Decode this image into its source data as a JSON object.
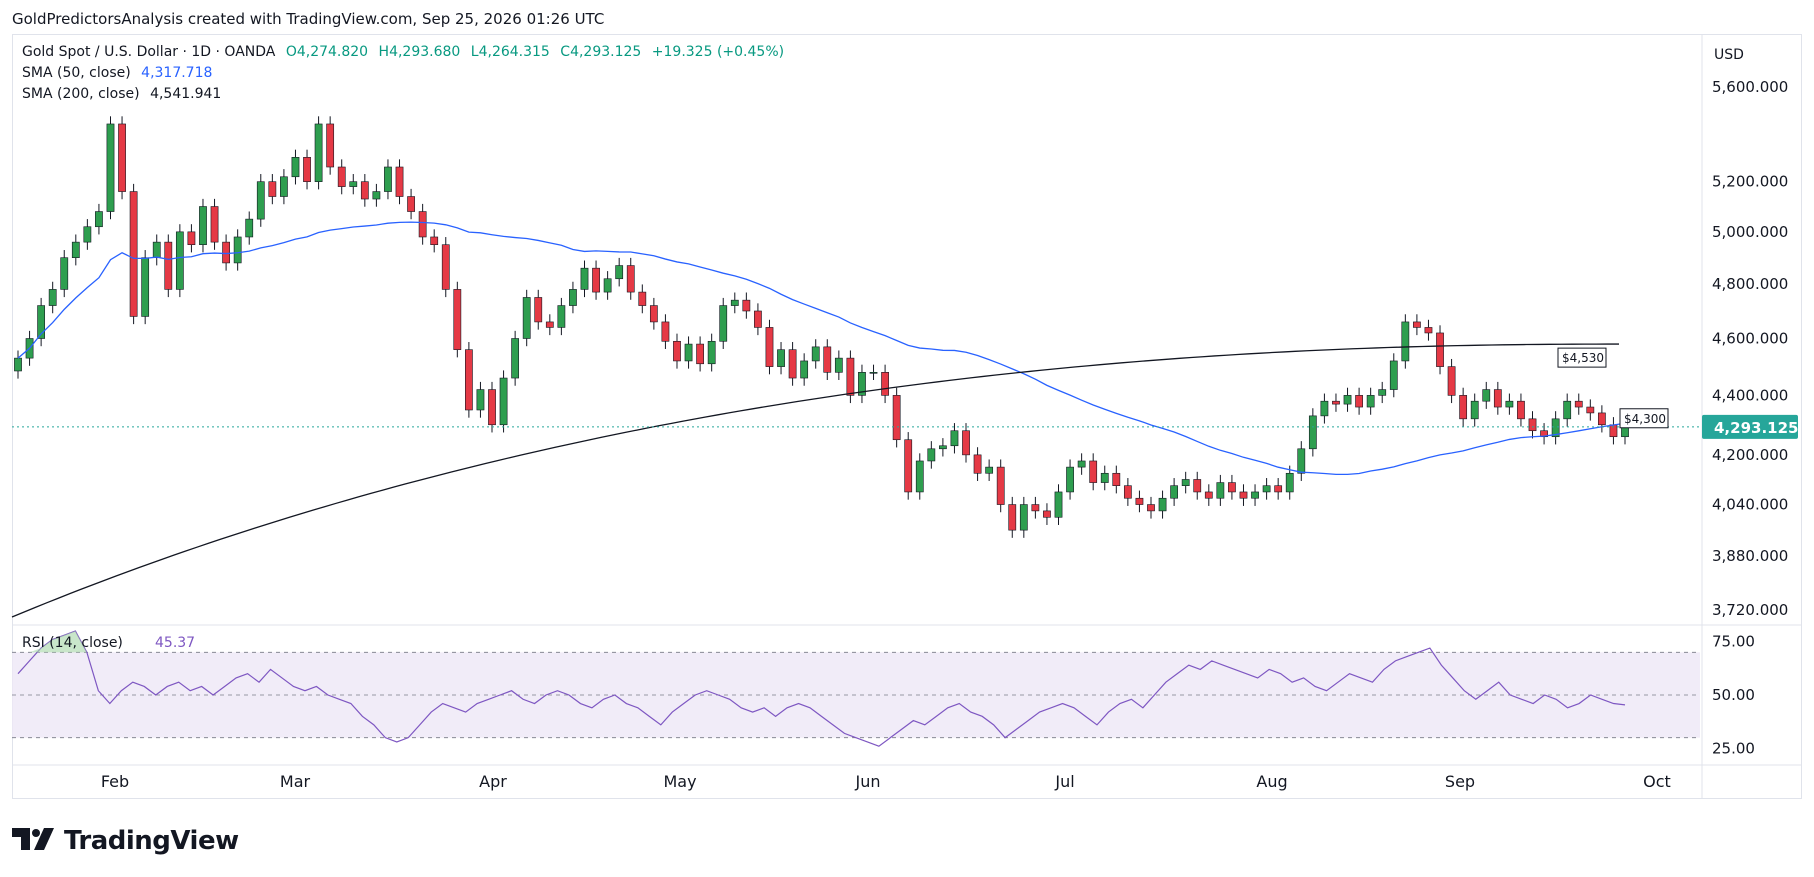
{
  "header": {
    "attribution": "GoldPredictorsAnalysis created with TradingView.com, Sep 25, 2026 01:26 UTC"
  },
  "legend": {
    "symbol": "Gold Spot / U.S. Dollar · 1D · OANDA",
    "open": "O4,274.820",
    "high": "H4,293.680",
    "low": "L4,264.315",
    "close": "C4,293.125",
    "change": "+19.325 (+0.45%)",
    "sma50_label": "SMA (50, close)",
    "sma50_value": "4,317.718",
    "sma200_label": "SMA (200, close)",
    "sma200_value": "4,541.941"
  },
  "currency": "USD",
  "brand": "TradingView",
  "colors": {
    "up": "#26a69a",
    "up_candle": "#2e9e4f",
    "down": "#e53945",
    "sma50": "#2962ff",
    "sma200": "#131722",
    "rsi": "#7e57c2",
    "price_tag": "#26a69a"
  },
  "chart_data": [
    {
      "type": "candlestick",
      "title": "Gold Spot / U.S. Dollar · 1D · OANDA",
      "x_tick_labels": [
        "Feb",
        "Mar",
        "Apr",
        "May",
        "Jun",
        "Jul",
        "Aug",
        "Sep",
        "Oct"
      ],
      "y_tick_labels": [
        "5,600.000",
        "5,200.000",
        "5,000.000",
        "4,800.000",
        "4,600.000",
        "4,400.000",
        "4,200.000",
        "4,040.000",
        "3,880.000",
        "3,720.000"
      ],
      "y_scale": "log",
      "ylim": [
        3700,
        5800
      ],
      "last_price_label": "4,293.125",
      "annotations": [
        "$4,530",
        "$4,300"
      ],
      "candles_close": [
        4530,
        4600,
        4720,
        4780,
        4900,
        4960,
        5020,
        5080,
        5440,
        5160,
        4680,
        4900,
        4960,
        4780,
        5000,
        4950,
        5100,
        4960,
        4880,
        4980,
        5050,
        5200,
        5140,
        5220,
        5300,
        5200,
        5440,
        5260,
        5180,
        5200,
        5130,
        5160,
        5260,
        5140,
        5080,
        4980,
        4950,
        4780,
        4560,
        4350,
        4420,
        4300,
        4460,
        4600,
        4750,
        4660,
        4640,
        4720,
        4780,
        4860,
        4770,
        4820,
        4870,
        4770,
        4720,
        4660,
        4590,
        4520,
        4580,
        4510,
        4590,
        4720,
        4740,
        4700,
        4640,
        4500,
        4560,
        4460,
        4520,
        4570,
        4480,
        4530,
        4400,
        4480,
        4480,
        4400,
        4250,
        4080,
        4180,
        4220,
        4230,
        4280,
        4200,
        4140,
        4160,
        4040,
        3960,
        4040,
        4020,
        4000,
        4080,
        4160,
        4180,
        4110,
        4140,
        4100,
        4060,
        4040,
        4020,
        4060,
        4100,
        4120,
        4080,
        4060,
        4110,
        4080,
        4060,
        4080,
        4100,
        4080,
        4140,
        4220,
        4330,
        4380,
        4370,
        4400,
        4360,
        4400,
        4420,
        4520,
        4660,
        4640,
        4620,
        4500,
        4400,
        4320,
        4380,
        4420,
        4360,
        4380,
        4320,
        4280,
        4260,
        4320,
        4380,
        4360,
        4340,
        4300,
        4260,
        4293
      ]
    },
    {
      "type": "line",
      "title": "RSI (14, close)",
      "value_label": "45.37",
      "y_tick_labels": [
        "75.00",
        "50.00",
        "25.00"
      ],
      "ylim": [
        20,
        80
      ],
      "bands": [
        30,
        50,
        70
      ],
      "values": [
        60,
        66,
        72,
        76,
        78,
        80,
        70,
        52,
        46,
        52,
        56,
        54,
        50,
        54,
        56,
        52,
        54,
        50,
        54,
        58,
        60,
        56,
        62,
        58,
        54,
        52,
        54,
        50,
        48,
        46,
        40,
        36,
        30,
        28,
        30,
        36,
        42,
        46,
        44,
        42,
        46,
        48,
        50,
        52,
        48,
        46,
        50,
        52,
        50,
        46,
        44,
        48,
        50,
        46,
        44,
        40,
        36,
        42,
        46,
        50,
        52,
        50,
        48,
        44,
        42,
        44,
        40,
        44,
        46,
        44,
        40,
        36,
        32,
        30,
        28,
        26,
        30,
        34,
        38,
        36,
        40,
        44,
        46,
        42,
        40,
        36,
        30,
        34,
        38,
        42,
        44,
        46,
        44,
        40,
        36,
        42,
        46,
        48,
        44,
        50,
        56,
        60,
        64,
        62,
        66,
        64,
        62,
        60,
        58,
        62,
        60,
        56,
        58,
        54,
        52,
        56,
        60,
        58,
        56,
        62,
        66,
        68,
        70,
        72,
        64,
        58,
        52,
        48,
        52,
        56,
        50,
        48,
        46,
        50,
        48,
        44,
        46,
        50,
        48,
        46,
        45.37
      ]
    }
  ]
}
